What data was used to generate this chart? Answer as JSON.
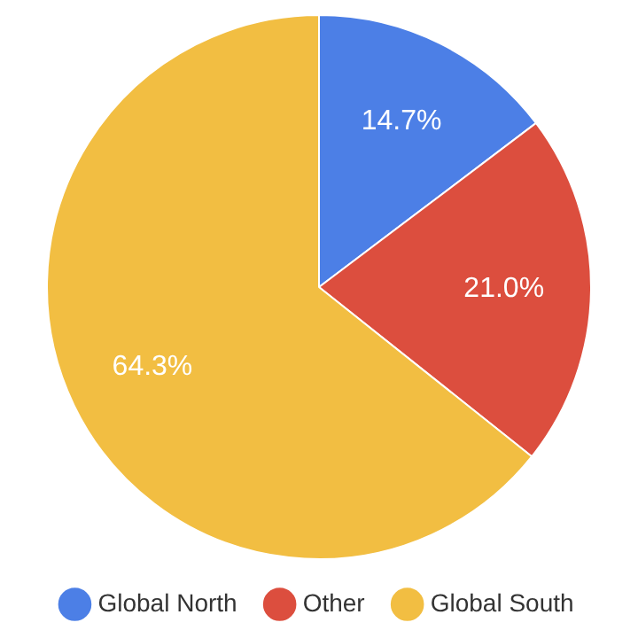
{
  "chart_data": {
    "type": "pie",
    "categories": [
      "Global North",
      "Other",
      "Global South"
    ],
    "values": [
      14.7,
      21.0,
      64.3
    ],
    "colors": [
      "#4c7fe6",
      "#dc4e3e",
      "#f2be42"
    ],
    "value_labels": [
      "14.7%",
      "21.0%",
      "64.3%"
    ],
    "legend": "bottom"
  }
}
